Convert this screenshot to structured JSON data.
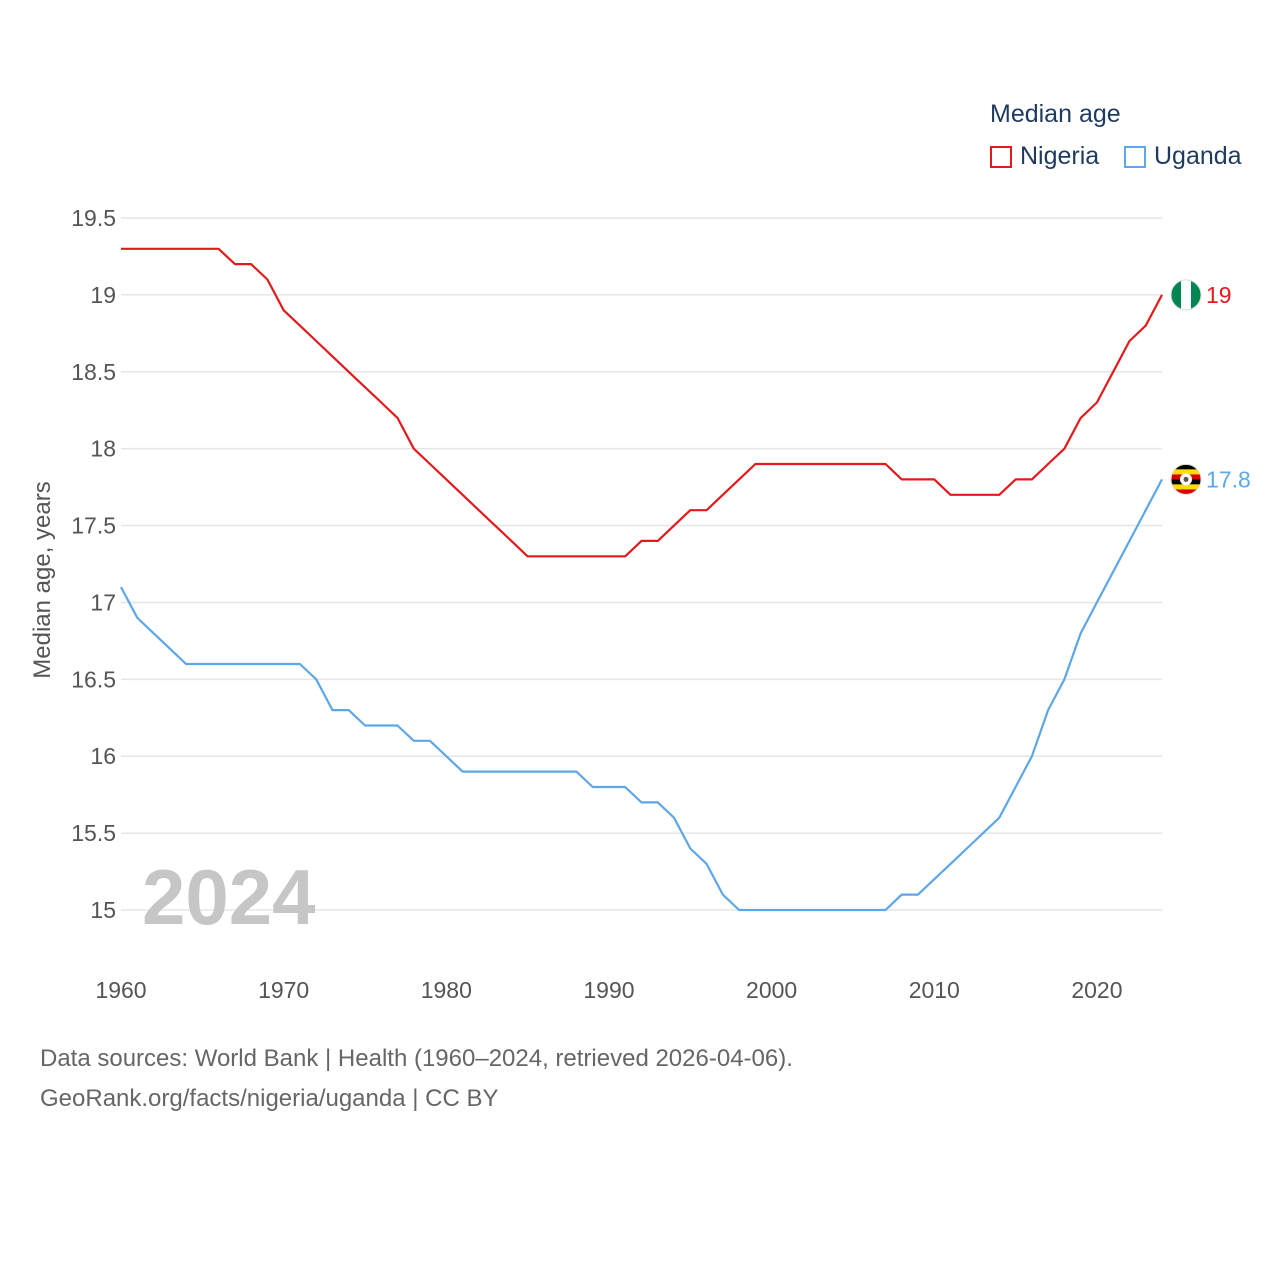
{
  "chart_data": {
    "type": "line",
    "legend_title": "Median age",
    "ylabel": "Median age, years",
    "xlabel": "",
    "x_ticks": [
      1960,
      1970,
      1980,
      1990,
      2000,
      2010,
      2020
    ],
    "y_ticks": [
      15,
      15.5,
      16,
      16.5,
      17,
      17.5,
      18,
      18.5,
      19,
      19.5
    ],
    "y_tick_labels": [
      "15",
      "15.5",
      "16",
      "16.5",
      "17",
      "17.5",
      "18",
      "18.5",
      "19",
      "19.5"
    ],
    "xlim": [
      1960,
      2024
    ],
    "ylim": [
      14.8,
      19.6
    ],
    "year_overlay": "2024",
    "series": [
      {
        "name": "Nigeria",
        "color": "#e31a1c",
        "flag": "nigeria-flag-icon",
        "end_label": "19",
        "x": [
          1960,
          1961,
          1962,
          1963,
          1964,
          1965,
          1966,
          1967,
          1968,
          1969,
          1970,
          1971,
          1972,
          1973,
          1974,
          1975,
          1976,
          1977,
          1978,
          1979,
          1980,
          1981,
          1982,
          1983,
          1984,
          1985,
          1986,
          1987,
          1988,
          1989,
          1990,
          1991,
          1992,
          1993,
          1994,
          1995,
          1996,
          1997,
          1998,
          1999,
          2000,
          2001,
          2002,
          2003,
          2004,
          2005,
          2006,
          2007,
          2008,
          2009,
          2010,
          2011,
          2012,
          2013,
          2014,
          2015,
          2016,
          2017,
          2018,
          2019,
          2020,
          2021,
          2022,
          2023,
          2024
        ],
        "values": [
          19.3,
          19.3,
          19.3,
          19.3,
          19.3,
          19.3,
          19.3,
          19.2,
          19.2,
          19.1,
          18.9,
          18.8,
          18.7,
          18.6,
          18.5,
          18.4,
          18.3,
          18.2,
          18.0,
          17.9,
          17.8,
          17.7,
          17.6,
          17.5,
          17.4,
          17.3,
          17.3,
          17.3,
          17.3,
          17.3,
          17.3,
          17.3,
          17.4,
          17.4,
          17.5,
          17.6,
          17.6,
          17.7,
          17.8,
          17.9,
          17.9,
          17.9,
          17.9,
          17.9,
          17.9,
          17.9,
          17.9,
          17.9,
          17.8,
          17.8,
          17.8,
          17.7,
          17.7,
          17.7,
          17.7,
          17.8,
          17.8,
          17.9,
          18.0,
          18.2,
          18.3,
          18.5,
          18.7,
          18.8,
          19.0
        ]
      },
      {
        "name": "Uganda",
        "color": "#5ea7e6",
        "flag": "uganda-flag-icon",
        "end_label": "17.8",
        "x": [
          1960,
          1961,
          1962,
          1963,
          1964,
          1965,
          1966,
          1967,
          1968,
          1969,
          1970,
          1971,
          1972,
          1973,
          1974,
          1975,
          1976,
          1977,
          1978,
          1979,
          1980,
          1981,
          1982,
          1983,
          1984,
          1985,
          1986,
          1987,
          1988,
          1989,
          1990,
          1991,
          1992,
          1993,
          1994,
          1995,
          1996,
          1997,
          1998,
          1999,
          2000,
          2001,
          2002,
          2003,
          2004,
          2005,
          2006,
          2007,
          2008,
          2009,
          2010,
          2011,
          2012,
          2013,
          2014,
          2015,
          2016,
          2017,
          2018,
          2019,
          2020,
          2021,
          2022,
          2023,
          2024
        ],
        "values": [
          17.1,
          16.9,
          16.8,
          16.7,
          16.6,
          16.6,
          16.6,
          16.6,
          16.6,
          16.6,
          16.6,
          16.6,
          16.5,
          16.3,
          16.3,
          16.2,
          16.2,
          16.2,
          16.1,
          16.1,
          16.0,
          15.9,
          15.9,
          15.9,
          15.9,
          15.9,
          15.9,
          15.9,
          15.9,
          15.8,
          15.8,
          15.8,
          15.7,
          15.7,
          15.6,
          15.4,
          15.3,
          15.1,
          15.0,
          15.0,
          15.0,
          15.0,
          15.0,
          15.0,
          15.0,
          15.0,
          15.0,
          15.0,
          15.1,
          15.1,
          15.2,
          15.3,
          15.4,
          15.5,
          15.6,
          15.8,
          16.0,
          16.3,
          16.5,
          16.8,
          17.0,
          17.2,
          17.4,
          17.6,
          17.8
        ]
      }
    ]
  },
  "source": {
    "line1": "Data sources: World Bank | Health (1960–2024, retrieved 2026-04-06).",
    "line2": "GeoRank.org/facts/nigeria/uganda | CC BY"
  }
}
